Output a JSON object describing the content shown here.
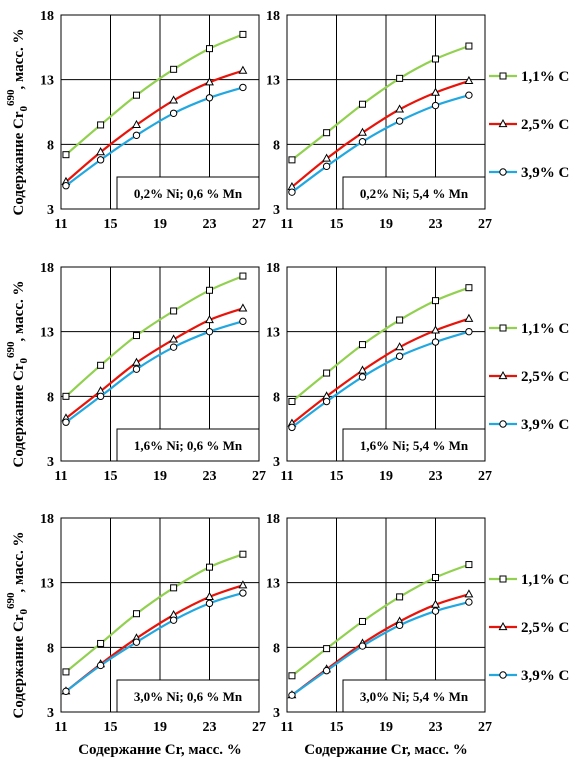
{
  "figure": {
    "ylabel": "Содержание Cr",
    "ylabel_sub": "0",
    "ylabel_sup": "690",
    "ylabel_tail": ", масс. %",
    "xlabel": "Содержание Cr, масс. %",
    "legend": [
      {
        "name": "1,1% C",
        "color": "#92d050",
        "marker": "square"
      },
      {
        "name": "2,5% C",
        "color": "#e8140a",
        "marker": "triangle"
      },
      {
        "name": "3,9% C",
        "color": "#21a8e0",
        "marker": "circle"
      }
    ]
  },
  "chart_data": [
    {
      "type": "line",
      "row": 0,
      "col": 0,
      "annotation": "0,2% Ni; 0,6 % Mn",
      "xlim": [
        11,
        27
      ],
      "ylim": [
        3,
        18
      ],
      "xticks": [
        "11",
        "15",
        "19",
        "23",
        "27"
      ],
      "yticks": [
        "3",
        "8",
        "13",
        "18"
      ],
      "x": [
        11.4,
        14.2,
        17.1,
        20.1,
        23.0,
        25.7
      ],
      "series": [
        {
          "name": "1,1% C",
          "values": [
            7.2,
            9.5,
            11.8,
            13.8,
            15.4,
            16.5
          ]
        },
        {
          "name": "2,5% C",
          "values": [
            5.1,
            7.4,
            9.5,
            11.4,
            12.8,
            13.7
          ]
        },
        {
          "name": "3,9% C",
          "values": [
            4.8,
            6.8,
            8.7,
            10.4,
            11.6,
            12.4
          ]
        }
      ]
    },
    {
      "type": "line",
      "row": 0,
      "col": 1,
      "annotation": "0,2% Ni; 5,4 % Mn",
      "xlim": [
        11,
        27
      ],
      "ylim": [
        3,
        18
      ],
      "xticks": [
        "11",
        "15",
        "19",
        "23",
        "27"
      ],
      "yticks": [
        "3",
        "8",
        "13",
        "18"
      ],
      "x": [
        11.4,
        14.2,
        17.1,
        20.1,
        23.0,
        25.7
      ],
      "series": [
        {
          "name": "1,1% C",
          "values": [
            6.8,
            8.9,
            11.1,
            13.1,
            14.6,
            15.6
          ]
        },
        {
          "name": "2,5% C",
          "values": [
            4.7,
            6.9,
            8.9,
            10.7,
            12.0,
            12.9
          ]
        },
        {
          "name": "3,9% C",
          "values": [
            4.3,
            6.3,
            8.2,
            9.8,
            11.0,
            11.8
          ]
        }
      ]
    },
    {
      "type": "line",
      "row": 1,
      "col": 0,
      "annotation": "1,6% Ni; 0,6 % Mn",
      "xlim": [
        11,
        27
      ],
      "ylim": [
        3,
        18
      ],
      "xticks": [
        "11",
        "15",
        "19",
        "23",
        "27"
      ],
      "yticks": [
        "3",
        "8",
        "13",
        "18"
      ],
      "x": [
        11.4,
        14.2,
        17.1,
        20.1,
        23.0,
        25.7
      ],
      "series": [
        {
          "name": "1,1% C",
          "values": [
            8.0,
            10.4,
            12.7,
            14.6,
            16.2,
            17.3
          ]
        },
        {
          "name": "2,5% C",
          "values": [
            6.3,
            8.4,
            10.6,
            12.4,
            13.9,
            14.8
          ]
        },
        {
          "name": "3,9% C",
          "values": [
            6.0,
            8.0,
            10.1,
            11.8,
            13.0,
            13.8
          ]
        }
      ]
    },
    {
      "type": "line",
      "row": 1,
      "col": 1,
      "annotation": "1,6% Ni; 5,4 % Mn",
      "xlim": [
        11,
        27
      ],
      "ylim": [
        3,
        18
      ],
      "xticks": [
        "11",
        "15",
        "19",
        "23",
        "27"
      ],
      "yticks": [
        "3",
        "8",
        "13",
        "18"
      ],
      "x": [
        11.4,
        14.2,
        17.1,
        20.1,
        23.0,
        25.7
      ],
      "series": [
        {
          "name": "1,1% C",
          "values": [
            7.6,
            9.8,
            12.0,
            13.9,
            15.4,
            16.4
          ]
        },
        {
          "name": "2,5% C",
          "values": [
            5.9,
            8.0,
            10.0,
            11.8,
            13.1,
            14.0
          ]
        },
        {
          "name": "3,9% C",
          "values": [
            5.6,
            7.6,
            9.5,
            11.1,
            12.2,
            13.0
          ]
        }
      ]
    },
    {
      "type": "line",
      "row": 2,
      "col": 0,
      "annotation": "3,0% Ni; 0,6 % Mn",
      "xlim": [
        11,
        27
      ],
      "ylim": [
        3,
        18
      ],
      "xticks": [
        "11",
        "15",
        "19",
        "23",
        "27"
      ],
      "yticks": [
        "3",
        "8",
        "13",
        "18"
      ],
      "x": [
        11.4,
        14.2,
        17.1,
        20.1,
        23.0,
        25.7
      ],
      "series": [
        {
          "name": "1,1% C",
          "values": [
            6.1,
            8.3,
            10.6,
            12.6,
            14.2,
            15.2
          ]
        },
        {
          "name": "2,5% C",
          "values": [
            4.6,
            6.7,
            8.7,
            10.5,
            11.9,
            12.8
          ]
        },
        {
          "name": "3,9% C",
          "values": [
            4.6,
            6.6,
            8.4,
            10.1,
            11.4,
            12.2
          ]
        }
      ]
    },
    {
      "type": "line",
      "row": 2,
      "col": 1,
      "annotation": "3,0% Ni; 5,4 % Mn",
      "xlim": [
        11,
        27
      ],
      "ylim": [
        3,
        18
      ],
      "xticks": [
        "11",
        "15",
        "19",
        "23",
        "27"
      ],
      "yticks": [
        "3",
        "8",
        "13",
        "18"
      ],
      "x": [
        11.4,
        14.2,
        17.1,
        20.1,
        23.0,
        25.7
      ],
      "series": [
        {
          "name": "1,1% C",
          "values": [
            5.8,
            7.9,
            10.0,
            11.9,
            13.4,
            14.4
          ]
        },
        {
          "name": "2,5% C",
          "values": [
            4.3,
            6.3,
            8.3,
            10.0,
            11.3,
            12.1
          ]
        },
        {
          "name": "3,9% C",
          "values": [
            4.3,
            6.2,
            8.1,
            9.7,
            10.8,
            11.5
          ]
        }
      ]
    }
  ]
}
